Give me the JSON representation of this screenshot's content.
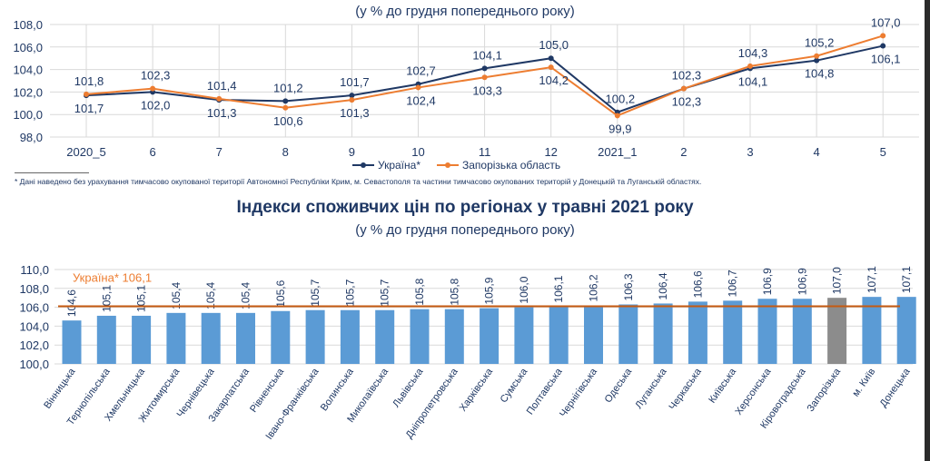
{
  "header": {
    "subtitle1": "(у % до грудня попереднього року)",
    "title2": "Індекси споживчих цін по регіонах у травні 2021 року",
    "subtitle2": "(у % до грудня попереднього року)"
  },
  "footnote": "* Дані наведено без урахування тимчасово окупованої території Автономної Республіки Крим, м. Севастополя та  частини тимчасово окупованих територій у Донецькій та Луганській областях.",
  "legend": {
    "ukraine": "Україна*",
    "zaporizhzhia": "Запорізька область"
  },
  "colors": {
    "ukraine": "#1f3864",
    "zaporizhzhia": "#ed7d31",
    "bar": "#5b9bd5",
    "bar_highlight": "#8c8c8c",
    "refline": "#c55a11",
    "text": "#1f3864"
  },
  "chart_data": [
    {
      "type": "line",
      "categories": [
        "2020_5",
        "6",
        "7",
        "8",
        "9",
        "10",
        "11",
        "12",
        "2021_1",
        "2",
        "3",
        "4",
        "5"
      ],
      "ylim": [
        98.0,
        108.0
      ],
      "yticks": [
        "98,0",
        "100,0",
        "102,0",
        "104,0",
        "106,0",
        "108,0"
      ],
      "ytick_values": [
        98,
        100,
        102,
        104,
        106,
        108
      ],
      "series": [
        {
          "name": "Україна*",
          "values": [
            101.7,
            102.0,
            101.3,
            101.2,
            101.7,
            102.7,
            104.1,
            105.0,
            100.2,
            102.3,
            104.1,
            104.8,
            106.1
          ],
          "labels": [
            "101,7",
            "102,0",
            "101,3",
            "101,2",
            "101,7",
            "102,7",
            "104,1",
            "105,0",
            "100,2",
            "102,3",
            "104,1",
            "104,8",
            "106,1"
          ]
        },
        {
          "name": "Запорізька область",
          "values": [
            101.8,
            102.3,
            101.4,
            100.6,
            101.3,
            102.4,
            103.3,
            104.2,
            99.9,
            102.3,
            104.3,
            105.2,
            107.0
          ],
          "labels": [
            "101,8",
            "102,3",
            "101,4",
            "100,6",
            "101,3",
            "102,4",
            "103,3",
            "104,2",
            "99,9",
            "102,3",
            "104,3",
            "105,2",
            "107,0"
          ]
        }
      ]
    },
    {
      "type": "bar",
      "title": "Індекси споживчих цін по регіонах у травні 2021 року",
      "categories": [
        "Вінницька",
        "Тернопільська",
        "Хмельницька",
        "Житомирська",
        "Чернівецька",
        "Закарпатська",
        "Рівненська",
        "Івано-Франківська",
        "Волинська",
        "Миколаївська",
        "Львівська",
        "Дніпропетровська",
        "Харківська",
        "Сумська",
        "Полтавська",
        "Чернігівська",
        "Одеська",
        "Луганська",
        "Черкаська",
        "Київська",
        "Херсонська",
        "Кіровоградська",
        "Запорізька",
        "м. Київ",
        "Донецька"
      ],
      "values": [
        104.6,
        105.1,
        105.1,
        105.4,
        105.4,
        105.4,
        105.6,
        105.7,
        105.7,
        105.7,
        105.8,
        105.8,
        105.9,
        106.0,
        106.1,
        106.2,
        106.3,
        106.4,
        106.6,
        106.7,
        106.9,
        106.9,
        107.0,
        107.1,
        107.1
      ],
      "labels": [
        "104,6",
        "105,1",
        "105,1",
        "105,4",
        "105,4",
        "105,4",
        "105,6",
        "105,7",
        "105,7",
        "105,7",
        "105,8",
        "105,8",
        "105,9",
        "106,0",
        "106,1",
        "106,2",
        "106,3",
        "106,4",
        "106,6",
        "106,7",
        "106,9",
        "106,9",
        "107,0",
        "107,1",
        "107,1"
      ],
      "highlight": "Запорізька",
      "reference": {
        "label": "Україна*  106,1",
        "value": 106.1
      },
      "ylim": [
        100.0,
        110.0
      ],
      "yticks": [
        "100,0",
        "102,0",
        "104,0",
        "106,0",
        "108,0",
        "110,0"
      ],
      "ytick_values": [
        100,
        102,
        104,
        106,
        108,
        110
      ]
    }
  ]
}
